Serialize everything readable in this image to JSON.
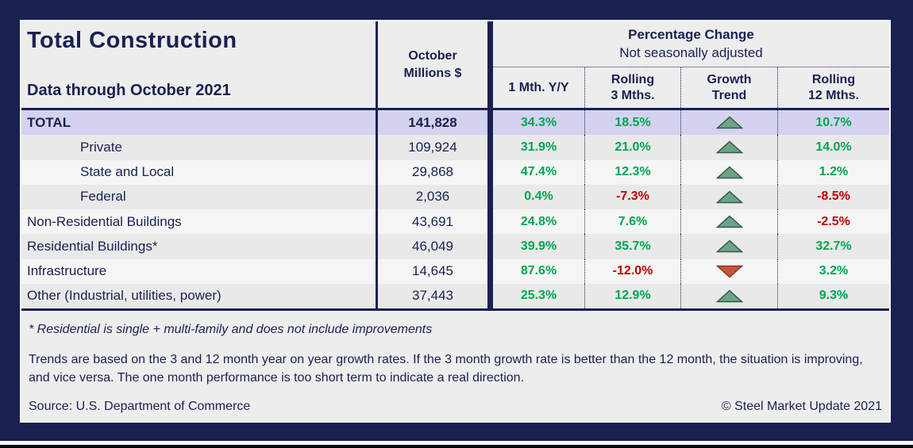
{
  "chart_data": {
    "type": "table",
    "title": "Total Construction",
    "subtitle": "Data through October 2021",
    "value_column_header": "October\nMillions $",
    "group_header": "Percentage Change",
    "group_subheader": "Not seasonally adjusted",
    "sub_columns": [
      "1 Mth. Y/Y",
      "Rolling\n3 Mths.",
      "Growth\nTrend",
      "Rolling\n12 Mths."
    ],
    "rows": [
      {
        "label": "TOTAL",
        "indent": false,
        "total": true,
        "millions": "141,828",
        "m1": "34.3%",
        "r3": "18.5%",
        "trend": "up",
        "r12": "10.7%"
      },
      {
        "label": "Private",
        "indent": true,
        "total": false,
        "millions": "109,924",
        "m1": "31.9%",
        "r3": "21.0%",
        "trend": "up",
        "r12": "14.0%"
      },
      {
        "label": "State and Local",
        "indent": true,
        "total": false,
        "millions": "29,868",
        "m1": "47.4%",
        "r3": "12.3%",
        "trend": "up",
        "r12": "1.2%"
      },
      {
        "label": "Federal",
        "indent": true,
        "total": false,
        "millions": "2,036",
        "m1": "0.4%",
        "r3": "-7.3%",
        "trend": "up",
        "r12": "-8.5%"
      },
      {
        "label": "Non-Residential Buildings",
        "indent": false,
        "total": false,
        "millions": "43,691",
        "m1": "24.8%",
        "r3": "7.6%",
        "trend": "up",
        "r12": "-2.5%"
      },
      {
        "label": "Residential Buildings*",
        "indent": false,
        "total": false,
        "millions": "46,049",
        "m1": "39.9%",
        "r3": "35.7%",
        "trend": "up",
        "r12": "32.7%"
      },
      {
        "label": "Infrastructure",
        "indent": false,
        "total": false,
        "millions": "14,645",
        "m1": "87.6%",
        "r3": "-12.0%",
        "trend": "down",
        "r12": "3.2%"
      },
      {
        "label": "Other (Industrial, utilities, power)",
        "indent": false,
        "total": false,
        "millions": "37,443",
        "m1": "25.3%",
        "r3": "12.9%",
        "trend": "up",
        "r12": "9.3%"
      }
    ]
  },
  "footnotes": {
    "residential_note": "* Residential is single + multi-family and does not include improvements",
    "trend_note": "Trends are based on the 3 and 12 month year on year growth rates. If the 3 month growth rate is better than the 12 month, the situation is improving, and vice versa. The one month performance is too short term to indicate a real direction."
  },
  "source": "Source: U.S. Department of Commerce",
  "copyright": "© Steel Market Update 2021",
  "colors": {
    "navy": "#1A2151",
    "positive_text": "#00A651",
    "negative_text": "#C00000",
    "total_row_bg": "#D3D3EF",
    "trend_up_fill": "#6FA287",
    "trend_up_stroke": "#2E5C47",
    "trend_down_fill": "#C65438",
    "trend_down_stroke": "#93361F"
  }
}
